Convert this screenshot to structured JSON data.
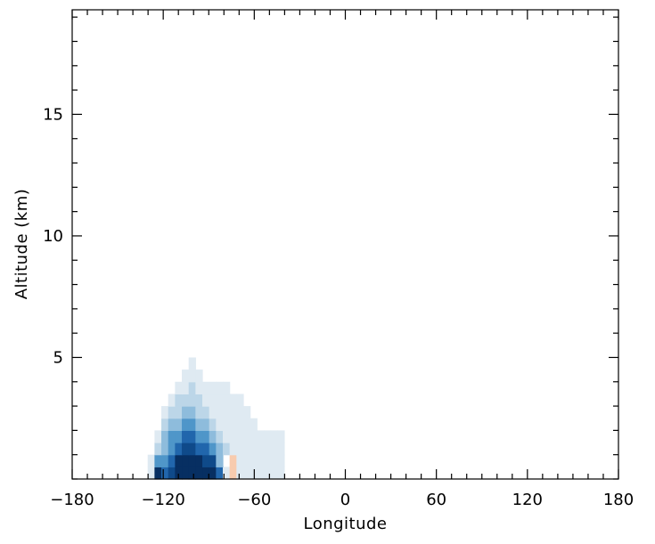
{
  "chart_data": {
    "type": "heatmap",
    "title": "",
    "xlabel": "Longitude",
    "ylabel": "Altitude (km)",
    "xlim": [
      -180,
      180
    ],
    "ylim": [
      0,
      19.3
    ],
    "x_ticks": [
      -180,
      -120,
      -60,
      0,
      60,
      120,
      180
    ],
    "x_tick_labels": [
      "−180",
      "−120",
      "−60",
      "0",
      "60",
      "120",
      "180"
    ],
    "x_minor_step": 10,
    "y_ticks": [
      5,
      10,
      15
    ],
    "y_tick_labels": [
      "5",
      "10",
      "15"
    ],
    "y_minor_step": 1,
    "grid": false,
    "cell_size": {
      "dlon": 4.5,
      "dz": 0.5
    },
    "colors": {
      "pale": "#dfeaf2",
      "light": "#bcd6e8",
      "mid": "#8ebcdc",
      "medium": "#4f96c9",
      "strong": "#2166ac",
      "dark": "#0f4a8a",
      "darkest": "#072f62",
      "positive": "#f8cbae"
    },
    "cells": [
      {
        "lon": -128,
        "z": 0.25,
        "c": "pale"
      },
      {
        "lon": -123.5,
        "z": 0.25,
        "c": "darkest"
      },
      {
        "lon": -119,
        "z": 0.25,
        "c": "strong"
      },
      {
        "lon": -114.5,
        "z": 0.25,
        "c": "dark"
      },
      {
        "lon": -110,
        "z": 0.25,
        "c": "darkest"
      },
      {
        "lon": -105.5,
        "z": 0.25,
        "c": "darkest"
      },
      {
        "lon": -101,
        "z": 0.25,
        "c": "darkest"
      },
      {
        "lon": -96.5,
        "z": 0.25,
        "c": "darkest"
      },
      {
        "lon": -92,
        "z": 0.25,
        "c": "darkest"
      },
      {
        "lon": -87.5,
        "z": 0.25,
        "c": "darkest"
      },
      {
        "lon": -83,
        "z": 0.25,
        "c": "strong"
      },
      {
        "lon": -78.5,
        "z": 0.25,
        "c": "pale"
      },
      {
        "lon": -74,
        "z": 0.25,
        "c": "positive"
      },
      {
        "lon": -69.5,
        "z": 0.25,
        "c": "pale"
      },
      {
        "lon": -65,
        "z": 0.25,
        "c": "pale"
      },
      {
        "lon": -60.5,
        "z": 0.25,
        "c": "pale"
      },
      {
        "lon": -56,
        "z": 0.25,
        "c": "pale"
      },
      {
        "lon": -51.5,
        "z": 0.25,
        "c": "pale"
      },
      {
        "lon": -47,
        "z": 0.25,
        "c": "pale"
      },
      {
        "lon": -42.5,
        "z": 0.25,
        "c": "pale"
      },
      {
        "lon": -128,
        "z": 0.75,
        "c": "pale"
      },
      {
        "lon": -123.5,
        "z": 0.75,
        "c": "medium"
      },
      {
        "lon": -119,
        "z": 0.75,
        "c": "medium"
      },
      {
        "lon": -114.5,
        "z": 0.75,
        "c": "strong"
      },
      {
        "lon": -110,
        "z": 0.75,
        "c": "darkest"
      },
      {
        "lon": -105.5,
        "z": 0.75,
        "c": "darkest"
      },
      {
        "lon": -101,
        "z": 0.75,
        "c": "darkest"
      },
      {
        "lon": -96.5,
        "z": 0.75,
        "c": "darkest"
      },
      {
        "lon": -92,
        "z": 0.75,
        "c": "dark"
      },
      {
        "lon": -87.5,
        "z": 0.75,
        "c": "dark"
      },
      {
        "lon": -83,
        "z": 0.75,
        "c": "mid"
      },
      {
        "lon": -74,
        "z": 0.75,
        "c": "positive"
      },
      {
        "lon": -69.5,
        "z": 0.75,
        "c": "pale"
      },
      {
        "lon": -65,
        "z": 0.75,
        "c": "pale"
      },
      {
        "lon": -60.5,
        "z": 0.75,
        "c": "pale"
      },
      {
        "lon": -56,
        "z": 0.75,
        "c": "pale"
      },
      {
        "lon": -51.5,
        "z": 0.75,
        "c": "pale"
      },
      {
        "lon": -47,
        "z": 0.75,
        "c": "pale"
      },
      {
        "lon": -42.5,
        "z": 0.75,
        "c": "pale"
      },
      {
        "lon": -123.5,
        "z": 1.25,
        "c": "light"
      },
      {
        "lon": -119,
        "z": 1.25,
        "c": "mid"
      },
      {
        "lon": -114.5,
        "z": 1.25,
        "c": "medium"
      },
      {
        "lon": -110,
        "z": 1.25,
        "c": "strong"
      },
      {
        "lon": -105.5,
        "z": 1.25,
        "c": "dark"
      },
      {
        "lon": -101,
        "z": 1.25,
        "c": "dark"
      },
      {
        "lon": -96.5,
        "z": 1.25,
        "c": "strong"
      },
      {
        "lon": -92,
        "z": 1.25,
        "c": "strong"
      },
      {
        "lon": -87.5,
        "z": 1.25,
        "c": "medium"
      },
      {
        "lon": -83,
        "z": 1.25,
        "c": "mid"
      },
      {
        "lon": -78.5,
        "z": 1.25,
        "c": "light"
      },
      {
        "lon": -74,
        "z": 1.25,
        "c": "pale"
      },
      {
        "lon": -69.5,
        "z": 1.25,
        "c": "pale"
      },
      {
        "lon": -65,
        "z": 1.25,
        "c": "pale"
      },
      {
        "lon": -60.5,
        "z": 1.25,
        "c": "pale"
      },
      {
        "lon": -56,
        "z": 1.25,
        "c": "pale"
      },
      {
        "lon": -51.5,
        "z": 1.25,
        "c": "pale"
      },
      {
        "lon": -47,
        "z": 1.25,
        "c": "pale"
      },
      {
        "lon": -42.5,
        "z": 1.25,
        "c": "pale"
      },
      {
        "lon": -123.5,
        "z": 1.75,
        "c": "pale"
      },
      {
        "lon": -119,
        "z": 1.75,
        "c": "mid"
      },
      {
        "lon": -114.5,
        "z": 1.75,
        "c": "medium"
      },
      {
        "lon": -110,
        "z": 1.75,
        "c": "medium"
      },
      {
        "lon": -105.5,
        "z": 1.75,
        "c": "strong"
      },
      {
        "lon": -101,
        "z": 1.75,
        "c": "strong"
      },
      {
        "lon": -96.5,
        "z": 1.75,
        "c": "medium"
      },
      {
        "lon": -92,
        "z": 1.75,
        "c": "medium"
      },
      {
        "lon": -87.5,
        "z": 1.75,
        "c": "mid"
      },
      {
        "lon": -83,
        "z": 1.75,
        "c": "light"
      },
      {
        "lon": -78.5,
        "z": 1.75,
        "c": "pale"
      },
      {
        "lon": -74,
        "z": 1.75,
        "c": "pale"
      },
      {
        "lon": -69.5,
        "z": 1.75,
        "c": "pale"
      },
      {
        "lon": -65,
        "z": 1.75,
        "c": "pale"
      },
      {
        "lon": -60.5,
        "z": 1.75,
        "c": "pale"
      },
      {
        "lon": -56,
        "z": 1.75,
        "c": "pale"
      },
      {
        "lon": -51.5,
        "z": 1.75,
        "c": "pale"
      },
      {
        "lon": -47,
        "z": 1.75,
        "c": "pale"
      },
      {
        "lon": -42.5,
        "z": 1.75,
        "c": "pale"
      },
      {
        "lon": -119,
        "z": 2.25,
        "c": "light"
      },
      {
        "lon": -114.5,
        "z": 2.25,
        "c": "mid"
      },
      {
        "lon": -110,
        "z": 2.25,
        "c": "mid"
      },
      {
        "lon": -105.5,
        "z": 2.25,
        "c": "medium"
      },
      {
        "lon": -101,
        "z": 2.25,
        "c": "medium"
      },
      {
        "lon": -96.5,
        "z": 2.25,
        "c": "mid"
      },
      {
        "lon": -92,
        "z": 2.25,
        "c": "mid"
      },
      {
        "lon": -87.5,
        "z": 2.25,
        "c": "light"
      },
      {
        "lon": -83,
        "z": 2.25,
        "c": "pale"
      },
      {
        "lon": -78.5,
        "z": 2.25,
        "c": "pale"
      },
      {
        "lon": -74,
        "z": 2.25,
        "c": "pale"
      },
      {
        "lon": -69.5,
        "z": 2.25,
        "c": "pale"
      },
      {
        "lon": -65,
        "z": 2.25,
        "c": "pale"
      },
      {
        "lon": -60.5,
        "z": 2.25,
        "c": "pale"
      },
      {
        "lon": -119,
        "z": 2.75,
        "c": "pale"
      },
      {
        "lon": -114.5,
        "z": 2.75,
        "c": "light"
      },
      {
        "lon": -110,
        "z": 2.75,
        "c": "light"
      },
      {
        "lon": -105.5,
        "z": 2.75,
        "c": "mid"
      },
      {
        "lon": -101,
        "z": 2.75,
        "c": "mid"
      },
      {
        "lon": -96.5,
        "z": 2.75,
        "c": "light"
      },
      {
        "lon": -92,
        "z": 2.75,
        "c": "light"
      },
      {
        "lon": -87.5,
        "z": 2.75,
        "c": "pale"
      },
      {
        "lon": -83,
        "z": 2.75,
        "c": "pale"
      },
      {
        "lon": -78.5,
        "z": 2.75,
        "c": "pale"
      },
      {
        "lon": -74,
        "z": 2.75,
        "c": "pale"
      },
      {
        "lon": -69.5,
        "z": 2.75,
        "c": "pale"
      },
      {
        "lon": -65,
        "z": 2.75,
        "c": "pale"
      },
      {
        "lon": -114.5,
        "z": 3.25,
        "c": "pale"
      },
      {
        "lon": -110,
        "z": 3.25,
        "c": "light"
      },
      {
        "lon": -105.5,
        "z": 3.25,
        "c": "light"
      },
      {
        "lon": -101,
        "z": 3.25,
        "c": "light"
      },
      {
        "lon": -96.5,
        "z": 3.25,
        "c": "light"
      },
      {
        "lon": -92,
        "z": 3.25,
        "c": "pale"
      },
      {
        "lon": -87.5,
        "z": 3.25,
        "c": "pale"
      },
      {
        "lon": -83,
        "z": 3.25,
        "c": "pale"
      },
      {
        "lon": -78.5,
        "z": 3.25,
        "c": "pale"
      },
      {
        "lon": -74,
        "z": 3.25,
        "c": "pale"
      },
      {
        "lon": -69.5,
        "z": 3.25,
        "c": "pale"
      },
      {
        "lon": -110,
        "z": 3.75,
        "c": "pale"
      },
      {
        "lon": -105.5,
        "z": 3.75,
        "c": "pale"
      },
      {
        "lon": -101,
        "z": 3.75,
        "c": "light"
      },
      {
        "lon": -96.5,
        "z": 3.75,
        "c": "pale"
      },
      {
        "lon": -92,
        "z": 3.75,
        "c": "pale"
      },
      {
        "lon": -87.5,
        "z": 3.75,
        "c": "pale"
      },
      {
        "lon": -83,
        "z": 3.75,
        "c": "pale"
      },
      {
        "lon": -78.5,
        "z": 3.75,
        "c": "pale"
      },
      {
        "lon": -105.5,
        "z": 4.25,
        "c": "pale"
      },
      {
        "lon": -101,
        "z": 4.25,
        "c": "pale"
      },
      {
        "lon": -96.5,
        "z": 4.25,
        "c": "pale"
      },
      {
        "lon": -101,
        "z": 4.75,
        "c": "pale"
      }
    ]
  }
}
